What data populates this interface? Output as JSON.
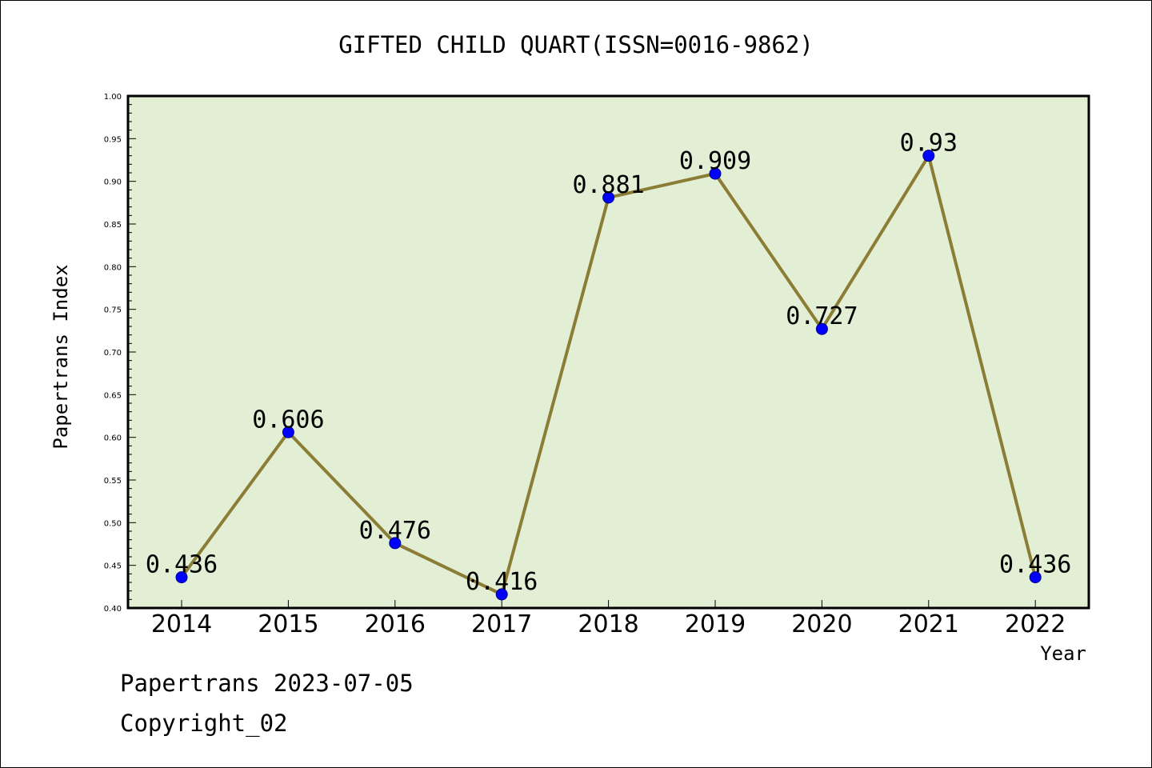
{
  "chart_data": {
    "type": "line",
    "title": "GIFTED CHILD QUART(ISSN=0016-9862)",
    "xlabel": "Year",
    "ylabel": "Papertrans Index",
    "categories": [
      "2014",
      "2015",
      "2016",
      "2017",
      "2018",
      "2019",
      "2020",
      "2021",
      "2022"
    ],
    "series": [
      {
        "values": [
          0.436,
          0.606,
          0.476,
          0.416,
          0.881,
          0.909,
          0.727,
          0.93,
          0.436
        ],
        "labels": [
          "0.436",
          "0.606",
          "0.476",
          "0.416",
          "0.881",
          "0.909",
          "0.727",
          "0.93",
          "0.436"
        ]
      }
    ],
    "ylim": [
      0.4,
      1.0
    ],
    "yticks": [
      "0.40",
      "0.45",
      "0.50",
      "0.55",
      "0.60",
      "0.65",
      "0.70",
      "0.75",
      "0.80",
      "0.85",
      "0.90",
      "0.95",
      "1.00"
    ],
    "grid": false,
    "colors": {
      "plot_background": "#e2efd5",
      "line": "#8b7d35",
      "marker": "#0000ff"
    }
  },
  "footer": {
    "line1": "Papertrans 2023-07-05",
    "line2": "Copyright_02"
  }
}
